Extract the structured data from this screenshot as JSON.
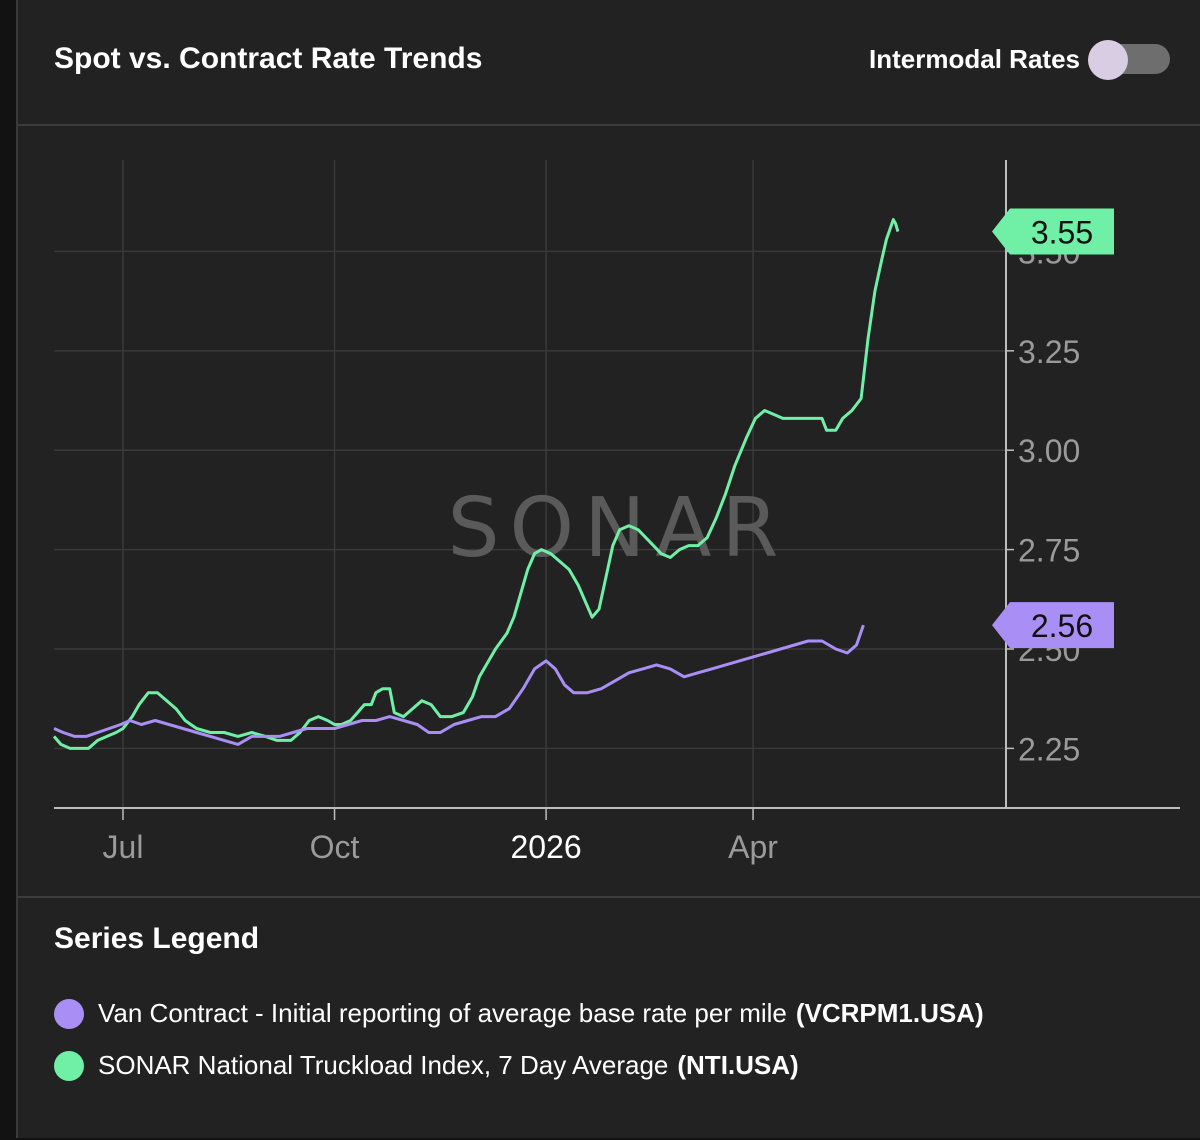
{
  "header": {
    "title": "Spot vs. Contract Rate Trends",
    "toggle_label": "Intermodal Rates",
    "toggle_on": false
  },
  "watermark": "SONAR",
  "legend": {
    "title": "Series Legend",
    "items": [
      {
        "label": "Van Contract - Initial reporting of average base rate per mile",
        "code": "(VCRPM1.USA)",
        "color": "#a98ff5"
      },
      {
        "label": "SONAR National Truckload Index, 7 Day Average",
        "code": "(NTI.USA)",
        "color": "#6ff0a6"
      }
    ]
  },
  "colors": {
    "background": "#222222",
    "grid": "#3a3a3a",
    "axis": "#bdbdbd",
    "tick_text": "#9a9a9a",
    "nti": "#6ff0a6",
    "vcrpm": "#a98ff5"
  },
  "chart_data": {
    "type": "line",
    "title": "Spot vs. Contract Rate Trends",
    "xlabel": "",
    "ylabel": "",
    "x_ticks": [
      {
        "label": "Jul",
        "date": "2025-07-01"
      },
      {
        "label": "Oct",
        "date": "2025-10-01"
      },
      {
        "label": "2026",
        "date": "2026-01-01",
        "emphasis": true
      },
      {
        "label": "Apr",
        "date": "2026-04-01"
      }
    ],
    "y_ticks": [
      "2.25",
      "2.50",
      "2.75",
      "3.00",
      "3.25",
      "3.50"
    ],
    "xlim": [
      "2025-06-01",
      "2026-07-20"
    ],
    "ylim": [
      2.1,
      3.73
    ],
    "y_axis_position": "right",
    "grid": true,
    "series": [
      {
        "name": "SONAR National Truckload Index, 7 Day Average",
        "code": "NTI.USA",
        "last_value": "3.55",
        "points": [
          [
            "2025-06-01",
            2.28
          ],
          [
            "2025-06-04",
            2.26
          ],
          [
            "2025-06-08",
            2.25
          ],
          [
            "2025-06-12",
            2.25
          ],
          [
            "2025-06-16",
            2.25
          ],
          [
            "2025-06-20",
            2.27
          ],
          [
            "2025-06-24",
            2.28
          ],
          [
            "2025-06-28",
            2.29
          ],
          [
            "2025-07-01",
            2.3
          ],
          [
            "2025-07-05",
            2.33
          ],
          [
            "2025-07-08",
            2.36
          ],
          [
            "2025-07-12",
            2.39
          ],
          [
            "2025-07-16",
            2.39
          ],
          [
            "2025-07-20",
            2.37
          ],
          [
            "2025-07-24",
            2.35
          ],
          [
            "2025-07-28",
            2.32
          ],
          [
            "2025-08-02",
            2.3
          ],
          [
            "2025-08-08",
            2.29
          ],
          [
            "2025-08-14",
            2.29
          ],
          [
            "2025-08-20",
            2.28
          ],
          [
            "2025-08-26",
            2.29
          ],
          [
            "2025-09-01",
            2.28
          ],
          [
            "2025-09-06",
            2.27
          ],
          [
            "2025-09-12",
            2.27
          ],
          [
            "2025-09-16",
            2.29
          ],
          [
            "2025-09-20",
            2.32
          ],
          [
            "2025-09-24",
            2.33
          ],
          [
            "2025-09-28",
            2.32
          ],
          [
            "2025-10-01",
            2.31
          ],
          [
            "2025-10-04",
            2.31
          ],
          [
            "2025-10-08",
            2.32
          ],
          [
            "2025-10-11",
            2.34
          ],
          [
            "2025-10-14",
            2.36
          ],
          [
            "2025-10-17",
            2.36
          ],
          [
            "2025-10-19",
            2.39
          ],
          [
            "2025-10-22",
            2.4
          ],
          [
            "2025-10-25",
            2.4
          ],
          [
            "2025-10-27",
            2.34
          ],
          [
            "2025-10-31",
            2.33
          ],
          [
            "2025-11-04",
            2.35
          ],
          [
            "2025-11-08",
            2.37
          ],
          [
            "2025-11-12",
            2.36
          ],
          [
            "2025-11-16",
            2.33
          ],
          [
            "2025-11-21",
            2.33
          ],
          [
            "2025-11-26",
            2.34
          ],
          [
            "2025-11-30",
            2.38
          ],
          [
            "2025-12-03",
            2.43
          ],
          [
            "2025-12-06",
            2.46
          ],
          [
            "2025-12-10",
            2.5
          ],
          [
            "2025-12-15",
            2.54
          ],
          [
            "2025-12-18",
            2.58
          ],
          [
            "2025-12-21",
            2.64
          ],
          [
            "2025-12-24",
            2.7
          ],
          [
            "2025-12-27",
            2.74
          ],
          [
            "2025-12-30",
            2.75
          ],
          [
            "2026-01-03",
            2.74
          ],
          [
            "2026-01-07",
            2.72
          ],
          [
            "2026-01-11",
            2.7
          ],
          [
            "2026-01-15",
            2.66
          ],
          [
            "2026-01-18",
            2.62
          ],
          [
            "2026-01-21",
            2.58
          ],
          [
            "2026-01-24",
            2.6
          ],
          [
            "2026-01-27",
            2.68
          ],
          [
            "2026-01-30",
            2.76
          ],
          [
            "2026-02-02",
            2.8
          ],
          [
            "2026-02-06",
            2.81
          ],
          [
            "2026-02-10",
            2.8
          ],
          [
            "2026-02-15",
            2.77
          ],
          [
            "2026-02-20",
            2.74
          ],
          [
            "2026-02-24",
            2.73
          ],
          [
            "2026-02-28",
            2.75
          ],
          [
            "2026-03-04",
            2.76
          ],
          [
            "2026-03-08",
            2.76
          ],
          [
            "2026-03-12",
            2.78
          ],
          [
            "2026-03-16",
            2.83
          ],
          [
            "2026-03-20",
            2.89
          ],
          [
            "2026-03-24",
            2.96
          ],
          [
            "2026-03-29",
            3.03
          ],
          [
            "2026-04-02",
            3.08
          ],
          [
            "2026-04-06",
            3.1
          ],
          [
            "2026-04-10",
            3.09
          ],
          [
            "2026-04-14",
            3.08
          ],
          [
            "2026-04-20",
            3.08
          ],
          [
            "2026-04-26",
            3.08
          ],
          [
            "2026-05-01",
            3.08
          ],
          [
            "2026-05-03",
            3.05
          ],
          [
            "2026-05-07",
            3.05
          ],
          [
            "2026-05-10",
            3.08
          ],
          [
            "2026-05-14",
            3.1
          ],
          [
            "2026-05-18",
            3.13
          ],
          [
            "2026-05-21",
            3.28
          ],
          [
            "2026-05-24",
            3.4
          ],
          [
            "2026-05-27",
            3.48
          ],
          [
            "2026-05-29",
            3.53
          ],
          [
            "2026-06-01",
            3.58
          ],
          [
            "2026-06-02",
            3.57
          ],
          [
            "2026-06-03",
            3.55
          ]
        ]
      },
      {
        "name": "Van Contract - Initial reporting of average base rate per mile",
        "code": "VCRPM1.USA",
        "last_value": "2.56",
        "points": [
          [
            "2025-06-01",
            2.3
          ],
          [
            "2025-06-05",
            2.29
          ],
          [
            "2025-06-10",
            2.28
          ],
          [
            "2025-06-15",
            2.28
          ],
          [
            "2025-06-20",
            2.29
          ],
          [
            "2025-06-25",
            2.3
          ],
          [
            "2025-06-30",
            2.31
          ],
          [
            "2025-07-04",
            2.32
          ],
          [
            "2025-07-09",
            2.31
          ],
          [
            "2025-07-15",
            2.32
          ],
          [
            "2025-07-21",
            2.31
          ],
          [
            "2025-07-27",
            2.3
          ],
          [
            "2025-08-02",
            2.29
          ],
          [
            "2025-08-08",
            2.28
          ],
          [
            "2025-08-14",
            2.27
          ],
          [
            "2025-08-20",
            2.26
          ],
          [
            "2025-08-26",
            2.28
          ],
          [
            "2025-09-01",
            2.28
          ],
          [
            "2025-09-07",
            2.28
          ],
          [
            "2025-09-13",
            2.29
          ],
          [
            "2025-09-19",
            2.3
          ],
          [
            "2025-09-25",
            2.3
          ],
          [
            "2025-10-01",
            2.3
          ],
          [
            "2025-10-07",
            2.31
          ],
          [
            "2025-10-13",
            2.32
          ],
          [
            "2025-10-19",
            2.32
          ],
          [
            "2025-10-25",
            2.33
          ],
          [
            "2025-10-31",
            2.32
          ],
          [
            "2025-11-06",
            2.31
          ],
          [
            "2025-11-11",
            2.29
          ],
          [
            "2025-11-16",
            2.29
          ],
          [
            "2025-11-22",
            2.31
          ],
          [
            "2025-11-28",
            2.32
          ],
          [
            "2025-12-04",
            2.33
          ],
          [
            "2025-12-10",
            2.33
          ],
          [
            "2025-12-16",
            2.35
          ],
          [
            "2025-12-22",
            2.4
          ],
          [
            "2025-12-27",
            2.45
          ],
          [
            "2026-01-01",
            2.47
          ],
          [
            "2026-01-05",
            2.45
          ],
          [
            "2026-01-09",
            2.41
          ],
          [
            "2026-01-13",
            2.39
          ],
          [
            "2026-01-19",
            2.39
          ],
          [
            "2026-01-25",
            2.4
          ],
          [
            "2026-01-31",
            2.42
          ],
          [
            "2026-02-06",
            2.44
          ],
          [
            "2026-02-12",
            2.45
          ],
          [
            "2026-02-18",
            2.46
          ],
          [
            "2026-02-24",
            2.45
          ],
          [
            "2026-03-02",
            2.43
          ],
          [
            "2026-03-08",
            2.44
          ],
          [
            "2026-03-14",
            2.45
          ],
          [
            "2026-03-20",
            2.46
          ],
          [
            "2026-03-26",
            2.47
          ],
          [
            "2026-04-01",
            2.48
          ],
          [
            "2026-04-07",
            2.49
          ],
          [
            "2026-04-13",
            2.5
          ],
          [
            "2026-04-19",
            2.51
          ],
          [
            "2026-04-25",
            2.52
          ],
          [
            "2026-05-01",
            2.52
          ],
          [
            "2026-05-07",
            2.5
          ],
          [
            "2026-05-12",
            2.49
          ],
          [
            "2026-05-16",
            2.51
          ],
          [
            "2026-05-19",
            2.56
          ]
        ]
      }
    ]
  }
}
